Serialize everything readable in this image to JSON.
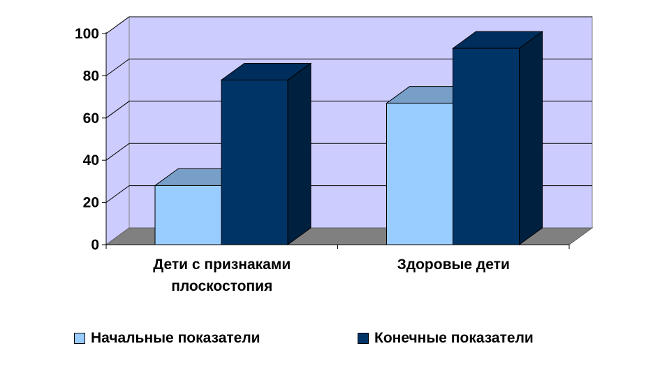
{
  "chart_data": {
    "type": "bar",
    "categories": [
      "Дети с признаками плоскостопия",
      "Здоровые дети"
    ],
    "category_lines": [
      [
        "Дети с признаками",
        "плоскостопия"
      ],
      [
        "Здоровые дети"
      ]
    ],
    "series": [
      {
        "name": "Начальные показатели",
        "values": [
          28,
          67
        ],
        "color": "#99ccff"
      },
      {
        "name": "Конечные показатели",
        "values": [
          78,
          93
        ],
        "color": "#003366"
      }
    ],
    "ylim": [
      0,
      100
    ],
    "yticks": [
      "0",
      "20",
      "40",
      "60",
      "80",
      "100"
    ],
    "grid": true,
    "three_d": true,
    "legend_position": "bottom",
    "colors": {
      "back_wall": "#ccccff",
      "floor": "#808080",
      "gridline": "#000000"
    }
  }
}
